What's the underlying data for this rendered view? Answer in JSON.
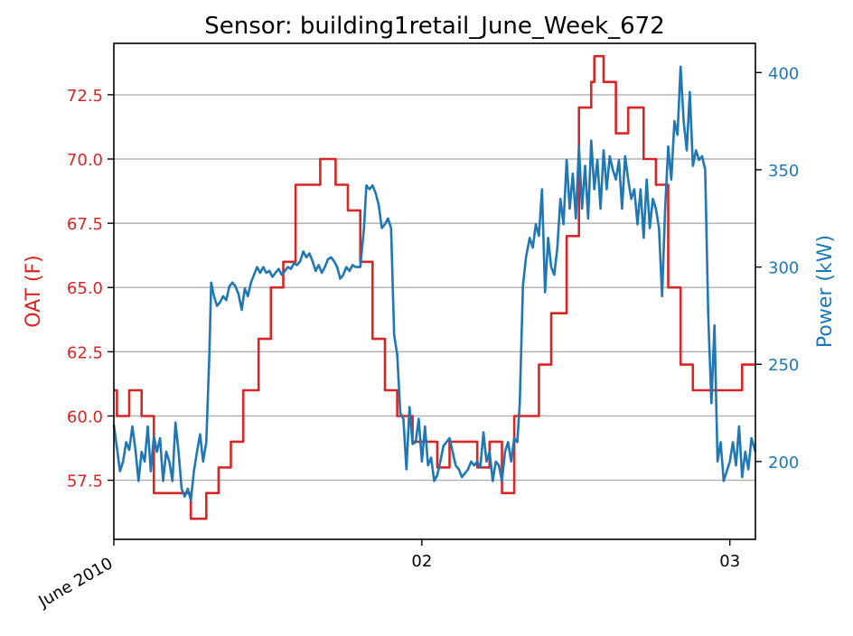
{
  "chart_data": {
    "type": "line",
    "title": "Sensor: building1retail_June_Week_672",
    "ylabel_left": "OAT (F)",
    "ylabel_right": "Power (kW)",
    "colors": {
      "oat": "#d62728",
      "power": "#1f77b4",
      "grid": "#b0b0b0",
      "axis": "#000000"
    },
    "grid": "horizontal (left axis)",
    "xlim": [
      0,
      2.083
    ],
    "ylim_left": [
      55.2,
      74.5
    ],
    "ylim_right": [
      160,
      415
    ],
    "x_ticks": [
      {
        "x": 0,
        "label": "June 2010",
        "rotated": true
      },
      {
        "x": 1,
        "label": "02",
        "rotated": false
      },
      {
        "x": 2,
        "label": "03",
        "rotated": false
      }
    ],
    "y_ticks_left": [
      {
        "value": 57.5,
        "label": "57.5"
      },
      {
        "value": 60.0,
        "label": "60.0"
      },
      {
        "value": 62.5,
        "label": "62.5"
      },
      {
        "value": 65.0,
        "label": "65.0"
      },
      {
        "value": 67.5,
        "label": "67.5"
      },
      {
        "value": 70.0,
        "label": "70.0"
      },
      {
        "value": 72.5,
        "label": "72.5"
      }
    ],
    "y_ticks_right": [
      {
        "value": 200,
        "label": "200"
      },
      {
        "value": 250,
        "label": "250"
      },
      {
        "value": 300,
        "label": "300"
      },
      {
        "value": 350,
        "label": "350"
      },
      {
        "value": 400,
        "label": "400"
      }
    ],
    "series": [
      {
        "axis": "left",
        "step": true,
        "points": [
          [
            0.0,
            61
          ],
          [
            0.01,
            60
          ],
          [
            0.05,
            61
          ],
          [
            0.09,
            60
          ],
          [
            0.13,
            57
          ],
          [
            0.21,
            57
          ],
          [
            0.25,
            56
          ],
          [
            0.3,
            57
          ],
          [
            0.34,
            58
          ],
          [
            0.38,
            59
          ],
          [
            0.42,
            61
          ],
          [
            0.47,
            63
          ],
          [
            0.51,
            65
          ],
          [
            0.55,
            66
          ],
          [
            0.59,
            69
          ],
          [
            0.67,
            70
          ],
          [
            0.72,
            69
          ],
          [
            0.76,
            68
          ],
          [
            0.8,
            66
          ],
          [
            0.84,
            63
          ],
          [
            0.88,
            61
          ],
          [
            0.92,
            60
          ],
          [
            0.97,
            59
          ],
          [
            1.05,
            58
          ],
          [
            1.09,
            59
          ],
          [
            1.17,
            59
          ],
          [
            1.18,
            58
          ],
          [
            1.22,
            59
          ],
          [
            1.26,
            57
          ],
          [
            1.3,
            60
          ],
          [
            1.34,
            60
          ],
          [
            1.38,
            62
          ],
          [
            1.42,
            64
          ],
          [
            1.47,
            67
          ],
          [
            1.51,
            72
          ],
          [
            1.55,
            73
          ],
          [
            1.56,
            74
          ],
          [
            1.59,
            73
          ],
          [
            1.63,
            71
          ],
          [
            1.67,
            72
          ],
          [
            1.72,
            70
          ],
          [
            1.76,
            69
          ],
          [
            1.8,
            65
          ],
          [
            1.84,
            62
          ],
          [
            1.88,
            61
          ],
          [
            2.04,
            62
          ],
          [
            2.083,
            62
          ]
        ]
      },
      {
        "axis": "right",
        "step": false,
        "points": [
          [
            0.0,
            219
          ],
          [
            0.01,
            207
          ],
          [
            0.02,
            195
          ],
          [
            0.03,
            200
          ],
          [
            0.04,
            210
          ],
          [
            0.05,
            206
          ],
          [
            0.06,
            218
          ],
          [
            0.07,
            206
          ],
          [
            0.08,
            190
          ],
          [
            0.09,
            205
          ],
          [
            0.1,
            200
          ],
          [
            0.11,
            218
          ],
          [
            0.12,
            195
          ],
          [
            0.13,
            213
          ],
          [
            0.14,
            205
          ],
          [
            0.15,
            212
          ],
          [
            0.16,
            190
          ],
          [
            0.17,
            205
          ],
          [
            0.18,
            200
          ],
          [
            0.19,
            190
          ],
          [
            0.2,
            220
          ],
          [
            0.21,
            205
          ],
          [
            0.22,
            186
          ],
          [
            0.23,
            182
          ],
          [
            0.24,
            186
          ],
          [
            0.25,
            180
          ],
          [
            0.26,
            195
          ],
          [
            0.27,
            205
          ],
          [
            0.28,
            214
          ],
          [
            0.29,
            200
          ],
          [
            0.3,
            210
          ],
          [
            0.31,
            255
          ],
          [
            0.316,
            292
          ],
          [
            0.325,
            285
          ],
          [
            0.335,
            280
          ],
          [
            0.345,
            282
          ],
          [
            0.355,
            285
          ],
          [
            0.365,
            283
          ],
          [
            0.375,
            290
          ],
          [
            0.385,
            292
          ],
          [
            0.395,
            290
          ],
          [
            0.405,
            286
          ],
          [
            0.415,
            278
          ],
          [
            0.425,
            289
          ],
          [
            0.435,
            285
          ],
          [
            0.445,
            292
          ],
          [
            0.455,
            296
          ],
          [
            0.465,
            300
          ],
          [
            0.475,
            297
          ],
          [
            0.485,
            300
          ],
          [
            0.495,
            297
          ],
          [
            0.505,
            298
          ],
          [
            0.515,
            295
          ],
          [
            0.525,
            297
          ],
          [
            0.535,
            299
          ],
          [
            0.545,
            296
          ],
          [
            0.555,
            298
          ],
          [
            0.565,
            300
          ],
          [
            0.575,
            299
          ],
          [
            0.585,
            302
          ],
          [
            0.595,
            301
          ],
          [
            0.605,
            303
          ],
          [
            0.615,
            308
          ],
          [
            0.625,
            305
          ],
          [
            0.635,
            307
          ],
          [
            0.645,
            303
          ],
          [
            0.655,
            298
          ],
          [
            0.665,
            301
          ],
          [
            0.675,
            297
          ],
          [
            0.685,
            300
          ],
          [
            0.695,
            304
          ],
          [
            0.705,
            305
          ],
          [
            0.715,
            303
          ],
          [
            0.725,
            300
          ],
          [
            0.735,
            294
          ],
          [
            0.745,
            296
          ],
          [
            0.755,
            300
          ],
          [
            0.765,
            298
          ],
          [
            0.775,
            301
          ],
          [
            0.785,
            300
          ],
          [
            0.8,
            300
          ],
          [
            0.812,
            320
          ],
          [
            0.82,
            342
          ],
          [
            0.83,
            340
          ],
          [
            0.84,
            342
          ],
          [
            0.85,
            338
          ],
          [
            0.86,
            332
          ],
          [
            0.87,
            320
          ],
          [
            0.88,
            322
          ],
          [
            0.89,
            325
          ],
          [
            0.9,
            320
          ],
          [
            0.91,
            265
          ],
          [
            0.92,
            255
          ],
          [
            0.93,
            225
          ],
          [
            0.94,
            222
          ],
          [
            0.95,
            196
          ],
          [
            0.96,
            228
          ],
          [
            0.97,
            209
          ],
          [
            0.98,
            210
          ],
          [
            0.99,
            222
          ],
          [
            1.0,
            200
          ],
          [
            1.01,
            218
          ],
          [
            1.02,
            198
          ],
          [
            1.03,
            202
          ],
          [
            1.04,
            190
          ],
          [
            1.05,
            193
          ],
          [
            1.06,
            200
          ],
          [
            1.07,
            208
          ],
          [
            1.08,
            210
          ],
          [
            1.09,
            212
          ],
          [
            1.1,
            205
          ],
          [
            1.11,
            198
          ],
          [
            1.12,
            196
          ],
          [
            1.13,
            192
          ],
          [
            1.14,
            194
          ],
          [
            1.15,
            196
          ],
          [
            1.16,
            200
          ],
          [
            1.17,
            198
          ],
          [
            1.18,
            200
          ],
          [
            1.19,
            197
          ],
          [
            1.2,
            215
          ],
          [
            1.21,
            200
          ],
          [
            1.22,
            205
          ],
          [
            1.23,
            190
          ],
          [
            1.24,
            200
          ],
          [
            1.25,
            198
          ],
          [
            1.26,
            190
          ],
          [
            1.27,
            205
          ],
          [
            1.28,
            210
          ],
          [
            1.29,
            200
          ],
          [
            1.3,
            212
          ],
          [
            1.31,
            210
          ],
          [
            1.318,
            230
          ],
          [
            1.328,
            290
          ],
          [
            1.338,
            305
          ],
          [
            1.35,
            315
          ],
          [
            1.36,
            310
          ],
          [
            1.37,
            322
          ],
          [
            1.38,
            316
          ],
          [
            1.39,
            340
          ],
          [
            1.4,
            287
          ],
          [
            1.41,
            315
          ],
          [
            1.42,
            300
          ],
          [
            1.43,
            296
          ],
          [
            1.44,
            310
          ],
          [
            1.45,
            335
          ],
          [
            1.46,
            322
          ],
          [
            1.47,
            355
          ],
          [
            1.48,
            330
          ],
          [
            1.49,
            348
          ],
          [
            1.5,
            325
          ],
          [
            1.51,
            362
          ],
          [
            1.52,
            330
          ],
          [
            1.53,
            352
          ],
          [
            1.54,
            325
          ],
          [
            1.55,
            365
          ],
          [
            1.56,
            340
          ],
          [
            1.57,
            355
          ],
          [
            1.58,
            330
          ],
          [
            1.59,
            360
          ],
          [
            1.6,
            340
          ],
          [
            1.61,
            357
          ],
          [
            1.62,
            350
          ],
          [
            1.63,
            345
          ],
          [
            1.64,
            355
          ],
          [
            1.65,
            330
          ],
          [
            1.66,
            357
          ],
          [
            1.67,
            345
          ],
          [
            1.68,
            335
          ],
          [
            1.69,
            340
          ],
          [
            1.7,
            322
          ],
          [
            1.71,
            340
          ],
          [
            1.72,
            315
          ],
          [
            1.73,
            345
          ],
          [
            1.74,
            320
          ],
          [
            1.75,
            335
          ],
          [
            1.76,
            330
          ],
          [
            1.77,
            320
          ],
          [
            1.78,
            285
          ],
          [
            1.79,
            330
          ],
          [
            1.8,
            362
          ],
          [
            1.81,
            345
          ],
          [
            1.82,
            375
          ],
          [
            1.83,
            368
          ],
          [
            1.84,
            403
          ],
          [
            1.85,
            375
          ],
          [
            1.86,
            360
          ],
          [
            1.87,
            390
          ],
          [
            1.88,
            352
          ],
          [
            1.89,
            360
          ],
          [
            1.9,
            355
          ],
          [
            1.91,
            357
          ],
          [
            1.92,
            350
          ],
          [
            1.93,
            275
          ],
          [
            1.94,
            230
          ],
          [
            1.95,
            270
          ],
          [
            1.96,
            200
          ],
          [
            1.97,
            210
          ],
          [
            1.98,
            190
          ],
          [
            1.99,
            195
          ],
          [
            2.0,
            200
          ],
          [
            2.01,
            210
          ],
          [
            2.02,
            198
          ],
          [
            2.03,
            218
          ],
          [
            2.04,
            192
          ],
          [
            2.05,
            205
          ],
          [
            2.06,
            196
          ],
          [
            2.07,
            212
          ],
          [
            2.083,
            205
          ]
        ]
      }
    ]
  }
}
